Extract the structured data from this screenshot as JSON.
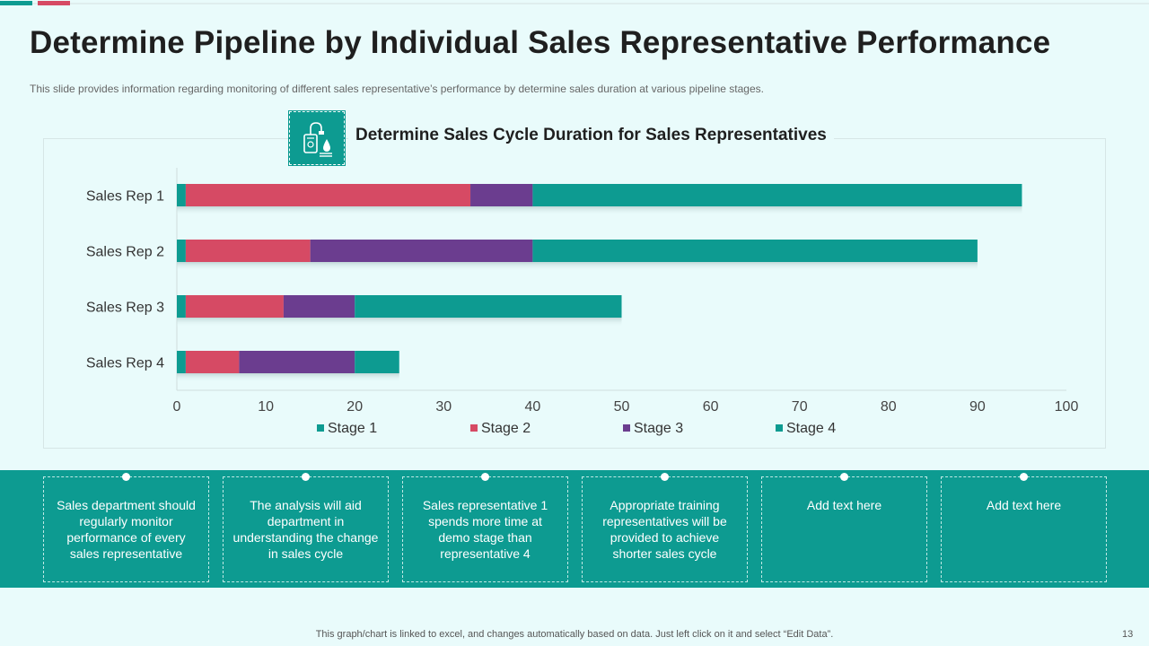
{
  "slide": {
    "title": "Determine Pipeline by Individual Sales Representative Performance",
    "subtitle": "This slide provides  information  regarding  monitoring  of  different  sales  representative’s  performance   by determine  sales  duration  at various  pipeline  stages.",
    "footer_note": "This graph/chart is linked to excel,  and changes automatically based on data. Just left click on it and select “Edit Data”.",
    "page_number": "13"
  },
  "colors": {
    "accent": "#0d9b91",
    "stage1": "#0d9b91",
    "stage2": "#d64a64",
    "stage3": "#6b3d8f",
    "stage4": "#0d9b91"
  },
  "icon": "sales-cycle-icon",
  "chart_data": {
    "type": "bar",
    "orientation": "horizontal",
    "stacked": true,
    "title": "Determine Sales Cycle Duration for Sales Representatives",
    "categories": [
      "Sales Rep 1",
      "Sales Rep 2",
      "Sales Rep 3",
      "Sales Rep 4"
    ],
    "series": [
      {
        "name": "Stage 1",
        "values": [
          1,
          1,
          1,
          1
        ]
      },
      {
        "name": "Stage 2",
        "values": [
          32,
          14,
          11,
          6
        ]
      },
      {
        "name": "Stage 3",
        "values": [
          7,
          25,
          8,
          13
        ]
      },
      {
        "name": "Stage 4",
        "values": [
          55,
          50,
          30,
          5
        ]
      }
    ],
    "xlim": [
      0,
      100
    ],
    "xticks": [
      "0",
      "10",
      "20",
      "30",
      "40",
      "50",
      "60",
      "70",
      "80",
      "90",
      "100"
    ],
    "xlabel": "",
    "ylabel": "",
    "grid": false,
    "legend_position": "bottom"
  },
  "cards": [
    {
      "text": "Sales department should regularly monitor performance of every sales representative"
    },
    {
      "text": "The analysis will aid department in understanding the change in sales cycle"
    },
    {
      "text": "Sales representative 1 spends more time at demo stage than representative 4"
    },
    {
      "text": "Appropriate training representatives will be provided to achieve shorter sales cycle"
    },
    {
      "text": "Add text here"
    },
    {
      "text": "Add text here"
    }
  ]
}
